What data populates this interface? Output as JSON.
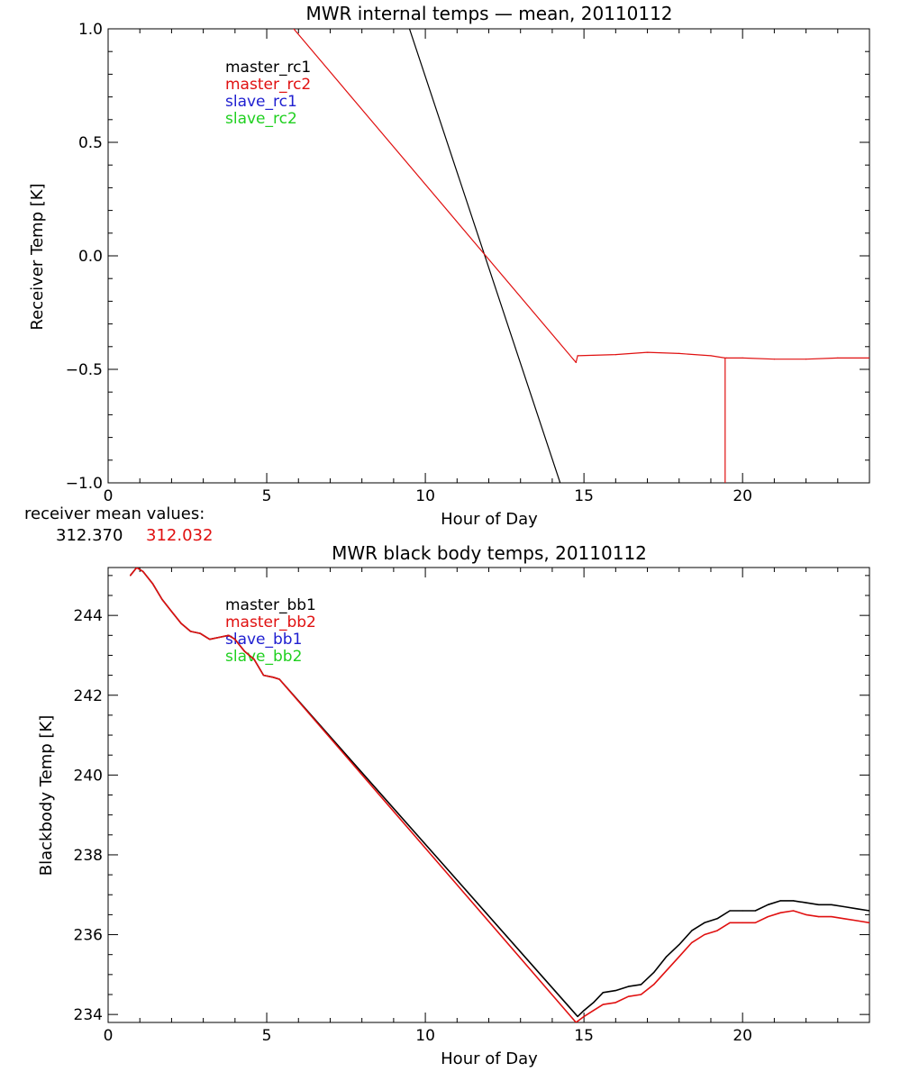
{
  "colors": {
    "master1": "#000000",
    "master2": "#e01010",
    "slave1": "#2020d0",
    "slave2": "#20d020"
  },
  "receiver_mean": {
    "label": "receiver mean values:",
    "value1": "312.370",
    "value2": "312.032"
  },
  "chart_data": [
    {
      "type": "line",
      "title": "MWR internal temps — mean, 20110112",
      "xlabel": "Hour of Day",
      "ylabel": "Receiver Temp [K]",
      "xlim": [
        0,
        24
      ],
      "ylim": [
        -1.0,
        1.0
      ],
      "xticks": [
        0,
        5,
        10,
        15,
        20
      ],
      "xtick_labels": [
        "0",
        "5",
        "10",
        "15",
        "20"
      ],
      "yticks": [
        -1.0,
        -0.5,
        0.0,
        0.5,
        1.0
      ],
      "ytick_labels": [
        "−1.0",
        "−0.5",
        "0.0",
        "0.5",
        "1.0"
      ],
      "legend": [
        "master_rc1",
        "master_rc2",
        "slave_rc1",
        "slave_rc2"
      ],
      "legend_position": "top-left",
      "series": [
        {
          "name": "master_rc1",
          "x": [
            9.5,
            14.25
          ],
          "y": [
            1.0,
            -1.0
          ]
        },
        {
          "name": "master_rc2",
          "x": [
            5.85,
            14.75,
            14.8,
            16.0,
            17.0,
            18.0,
            19.0,
            19.45,
            19.5,
            20.0,
            21.0,
            22.0,
            23.0,
            24.0
          ],
          "y": [
            1.0,
            -0.47,
            -0.44,
            -0.435,
            -0.425,
            -0.43,
            -0.44,
            -0.45,
            -0.45,
            -0.45,
            -0.455,
            -0.455,
            -0.45,
            -0.45
          ],
          "spike": {
            "x": 19.45,
            "y": -1.0
          }
        }
      ]
    },
    {
      "type": "line",
      "title": "MWR black body temps, 20110112",
      "xlabel": "Hour of Day",
      "ylabel": "Blackbody Temp [K]",
      "xlim": [
        0,
        24
      ],
      "ylim": [
        233.8,
        245.2
      ],
      "xticks": [
        0,
        5,
        10,
        15,
        20
      ],
      "xtick_labels": [
        "0",
        "5",
        "10",
        "15",
        "20"
      ],
      "yticks": [
        234,
        236,
        238,
        240,
        242,
        244
      ],
      "ytick_labels": [
        "234",
        "236",
        "238",
        "240",
        "242",
        "244"
      ],
      "legend": [
        "master_bb1",
        "master_bb2",
        "slave_bb1",
        "slave_bb2"
      ],
      "legend_position": "top-left",
      "series": [
        {
          "name": "master_bb1",
          "x": [
            0.7,
            0.9,
            1.1,
            1.4,
            1.7,
            2.0,
            2.3,
            2.6,
            2.9,
            3.2,
            3.5,
            3.8,
            4.0,
            4.3,
            4.6,
            4.9,
            5.2,
            5.4,
            14.8,
            15.0,
            15.3,
            15.6,
            16.0,
            16.4,
            16.8,
            17.2,
            17.6,
            18.0,
            18.4,
            18.8,
            19.2,
            19.6,
            20.0,
            20.4,
            20.8,
            21.2,
            21.6,
            22.0,
            22.4,
            22.8,
            23.2,
            23.6,
            24.0
          ],
          "y": [
            245.0,
            245.2,
            245.1,
            244.8,
            244.4,
            244.1,
            243.8,
            243.6,
            243.55,
            243.4,
            243.45,
            243.5,
            243.4,
            243.1,
            242.9,
            242.5,
            242.45,
            242.4,
            233.95,
            234.1,
            234.3,
            234.55,
            234.6,
            234.7,
            234.75,
            235.05,
            235.45,
            235.75,
            236.1,
            236.3,
            236.4,
            236.6,
            236.6,
            236.6,
            236.75,
            236.85,
            236.85,
            236.8,
            236.75,
            236.75,
            236.7,
            236.65,
            236.6
          ]
        },
        {
          "name": "master_bb2",
          "x": [
            0.7,
            0.9,
            1.1,
            1.4,
            1.7,
            2.0,
            2.3,
            2.6,
            2.9,
            3.2,
            3.5,
            3.8,
            4.0,
            4.3,
            4.6,
            4.9,
            5.2,
            5.4,
            14.75,
            15.0,
            15.3,
            15.6,
            16.0,
            16.4,
            16.8,
            17.2,
            17.6,
            18.0,
            18.4,
            18.8,
            19.2,
            19.6,
            20.0,
            20.4,
            20.8,
            21.2,
            21.6,
            22.0,
            22.4,
            22.8,
            23.2,
            23.6,
            24.0
          ],
          "y": [
            245.0,
            245.2,
            245.1,
            244.8,
            244.4,
            244.1,
            243.8,
            243.6,
            243.55,
            243.4,
            243.45,
            243.5,
            243.4,
            243.1,
            242.9,
            242.5,
            242.45,
            242.4,
            233.8,
            233.95,
            234.1,
            234.25,
            234.3,
            234.45,
            234.5,
            234.75,
            235.1,
            235.45,
            235.8,
            236.0,
            236.1,
            236.3,
            236.3,
            236.3,
            236.45,
            236.55,
            236.6,
            236.5,
            236.45,
            236.45,
            236.4,
            236.35,
            236.3
          ]
        }
      ]
    }
  ]
}
